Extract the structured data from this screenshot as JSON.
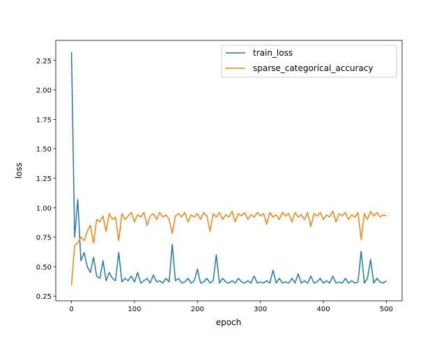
{
  "chart_data": {
    "type": "line",
    "title": "",
    "xlabel": "epoch",
    "ylabel": "loss",
    "xlim": [
      -25,
      525
    ],
    "ylim": [
      0.21,
      2.42
    ],
    "xticks": [
      0,
      100,
      200,
      300,
      400,
      500
    ],
    "yticks": [
      "0.25",
      "0.50",
      "0.75",
      "1.00",
      "1.25",
      "1.50",
      "1.75",
      "2.00",
      "2.25"
    ],
    "grid": false,
    "legend_position": "top-right",
    "x": [
      0,
      5,
      10,
      15,
      20,
      25,
      30,
      35,
      40,
      45,
      50,
      55,
      60,
      65,
      70,
      75,
      80,
      85,
      90,
      95,
      100,
      105,
      110,
      115,
      120,
      125,
      130,
      135,
      140,
      145,
      150,
      155,
      160,
      165,
      170,
      175,
      180,
      185,
      190,
      195,
      200,
      205,
      210,
      215,
      220,
      225,
      230,
      235,
      240,
      245,
      250,
      255,
      260,
      265,
      270,
      275,
      280,
      285,
      290,
      295,
      300,
      305,
      310,
      315,
      320,
      325,
      330,
      335,
      340,
      345,
      350,
      355,
      360,
      365,
      370,
      375,
      380,
      385,
      390,
      395,
      400,
      405,
      410,
      415,
      420,
      425,
      430,
      435,
      440,
      445,
      450,
      455,
      460,
      465,
      470,
      475,
      480,
      485,
      490,
      495,
      500
    ],
    "series": [
      {
        "name": "train_loss",
        "color": "#1f77b4",
        "values": [
          2.32,
          0.75,
          1.07,
          0.55,
          0.62,
          0.5,
          0.45,
          0.58,
          0.42,
          0.4,
          0.55,
          0.38,
          0.45,
          0.4,
          0.38,
          0.62,
          0.37,
          0.4,
          0.38,
          0.42,
          0.37,
          0.45,
          0.36,
          0.38,
          0.4,
          0.36,
          0.43,
          0.37,
          0.38,
          0.36,
          0.4,
          0.37,
          0.69,
          0.38,
          0.4,
          0.36,
          0.37,
          0.4,
          0.36,
          0.38,
          0.48,
          0.36,
          0.37,
          0.4,
          0.36,
          0.38,
          0.6,
          0.36,
          0.4,
          0.37,
          0.36,
          0.38,
          0.36,
          0.4,
          0.37,
          0.36,
          0.38,
          0.36,
          0.42,
          0.36,
          0.37,
          0.36,
          0.38,
          0.36,
          0.47,
          0.36,
          0.4,
          0.36,
          0.37,
          0.36,
          0.4,
          0.36,
          0.44,
          0.36,
          0.38,
          0.36,
          0.42,
          0.36,
          0.37,
          0.4,
          0.36,
          0.38,
          0.36,
          0.42,
          0.36,
          0.37,
          0.36,
          0.4,
          0.36,
          0.38,
          0.36,
          0.37,
          0.63,
          0.36,
          0.4,
          0.56,
          0.36,
          0.4,
          0.37,
          0.36,
          0.38
        ]
      },
      {
        "name": "sparse_categorical_accuracy",
        "color": "#ff7f0e",
        "values": [
          0.34,
          0.68,
          0.7,
          0.75,
          0.72,
          0.8,
          0.85,
          0.7,
          0.9,
          0.88,
          0.93,
          0.8,
          0.95,
          0.9,
          0.92,
          0.72,
          0.95,
          0.9,
          0.93,
          0.96,
          0.88,
          0.94,
          0.92,
          0.96,
          0.85,
          0.93,
          0.95,
          0.9,
          0.96,
          0.92,
          0.94,
          0.9,
          0.78,
          0.93,
          0.95,
          0.92,
          0.96,
          0.88,
          0.94,
          0.92,
          0.95,
          0.9,
          0.96,
          0.93,
          0.8,
          0.95,
          0.92,
          0.96,
          0.9,
          0.94,
          0.92,
          0.97,
          0.88,
          0.95,
          0.93,
          0.96,
          0.9,
          0.94,
          0.92,
          0.96,
          0.93,
          0.95,
          0.86,
          0.96,
          0.92,
          0.94,
          0.9,
          0.96,
          0.93,
          0.95,
          0.88,
          0.96,
          0.92,
          0.94,
          0.9,
          0.96,
          0.84,
          0.95,
          0.93,
          0.96,
          0.9,
          0.94,
          0.92,
          0.97,
          0.88,
          0.95,
          0.93,
          0.96,
          0.9,
          0.94,
          0.92,
          0.96,
          0.73,
          0.95,
          0.9,
          0.97,
          0.93,
          0.96,
          0.92,
          0.94,
          0.93
        ]
      }
    ]
  }
}
